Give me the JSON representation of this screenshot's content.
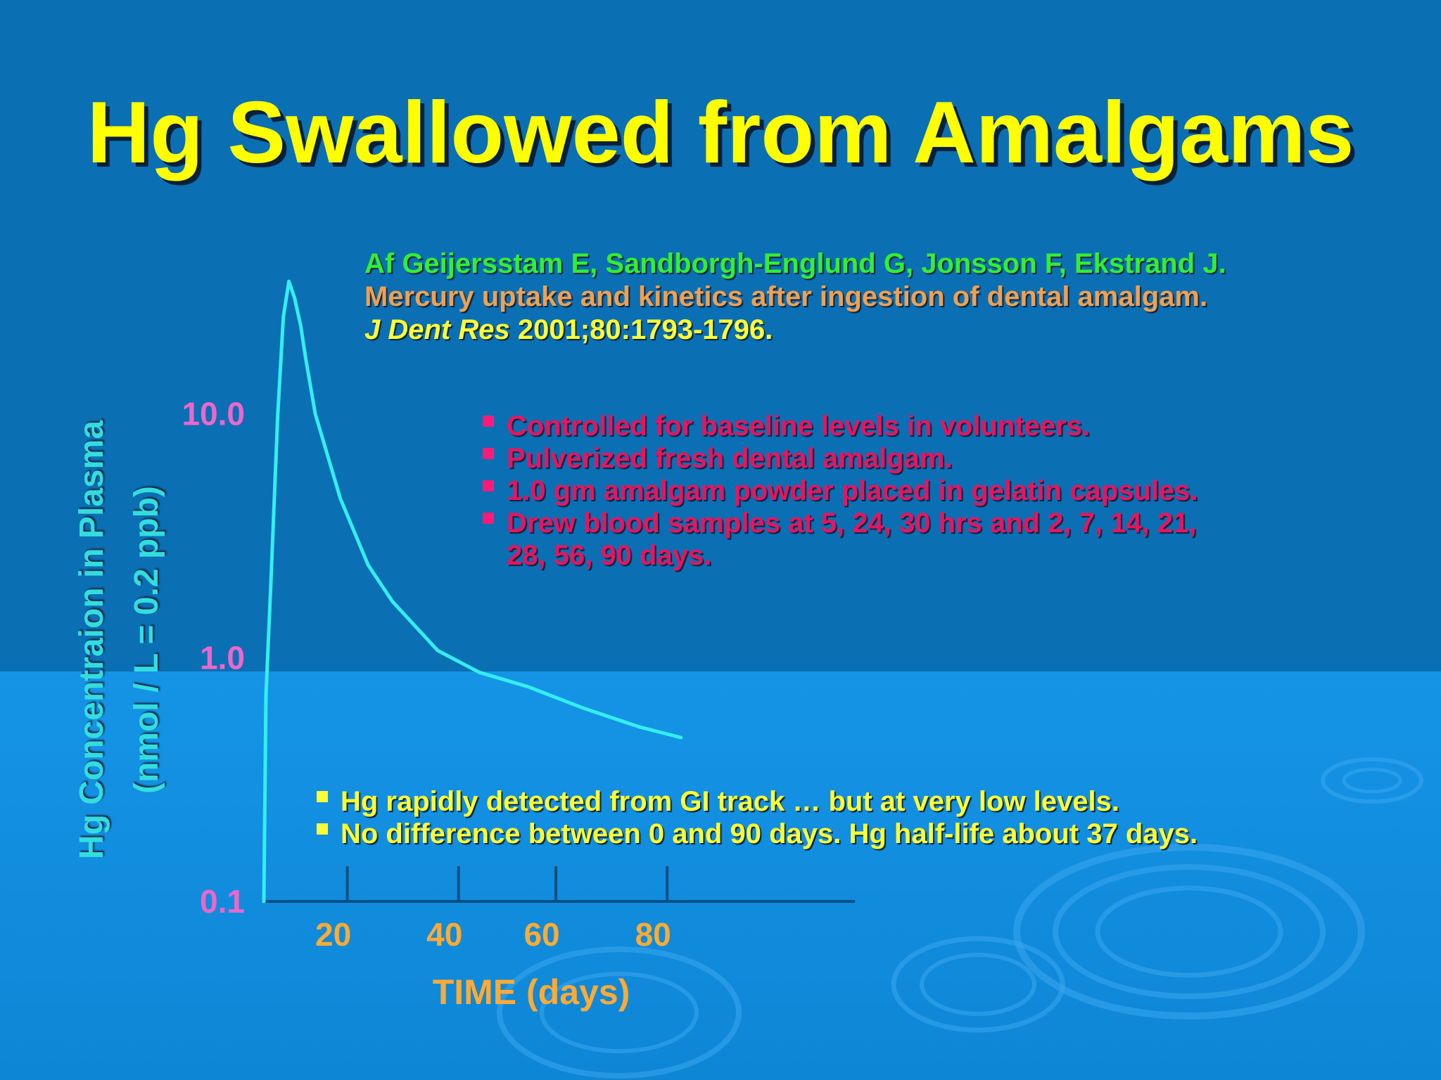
{
  "slide": {
    "title": "Hg Swallowed from Amalgams",
    "colors": {
      "background": "#0b6fb4",
      "title": "#ffff00",
      "curve": "#33eeee",
      "y_ticks": "#ee66cc",
      "x_ticks": "#ffaa33"
    }
  },
  "reference": {
    "authors": "Af Geijersstam E, Sandborgh-Englund G, Jonsson F, Ekstrand J.",
    "article": "Mercury uptake and kinetics after ingestion of dental amalgam.",
    "journal": "J Dent Res",
    "citation": " 2001;80:1793-1796."
  },
  "method_bullets": [
    "Controlled for baseline levels in volunteers.",
    "Pulverized fresh dental amalgam.",
    "1.0 gm amalgam powder placed in gelatin capsules.",
    "Drew blood samples at 5, 24, 30 hrs and 2, 7, 14, 21,"
  ],
  "method_bullet_continuation": "28, 56, 90 days.",
  "finding_bullets": [
    "Hg rapidly detected from GI track … but at very low levels.",
    "No difference between 0 and 90 days.  Hg half-life about 37 days."
  ],
  "chart_data": {
    "type": "line",
    "ylabel_line1": "Hg Concentraion in Plasma",
    "ylabel_line2": "(nmol / L = 0.2 ppb)",
    "xlabel": "TIME (days)",
    "y_scale": "log",
    "ylim": [
      0.1,
      40
    ],
    "xlim": [
      0,
      85
    ],
    "y_ticks": [
      {
        "value": 10,
        "label": "10.0"
      },
      {
        "value": 1,
        "label": "1.0"
      },
      {
        "value": 0.1,
        "label": "0.1"
      }
    ],
    "x_ticks": [
      {
        "value": 12,
        "label": "20"
      },
      {
        "value": 28,
        "label": "40"
      },
      {
        "value": 42,
        "label": "60"
      },
      {
        "value": 58,
        "label": "80"
      }
    ],
    "grid": false,
    "series": [
      {
        "x": [
          0,
          0.3,
          1,
          2,
          2.8,
          3.6,
          4.4,
          5.3,
          6,
          7.4,
          11,
          15,
          18.5,
          25,
          31,
          38,
          46,
          54,
          60
        ],
        "y": [
          0.1,
          0.7,
          2,
          10,
          25,
          35,
          30,
          23,
          17,
          10,
          4.5,
          2.4,
          1.7,
          1.07,
          0.87,
          0.76,
          0.62,
          0.52,
          0.47
        ]
      }
    ]
  }
}
